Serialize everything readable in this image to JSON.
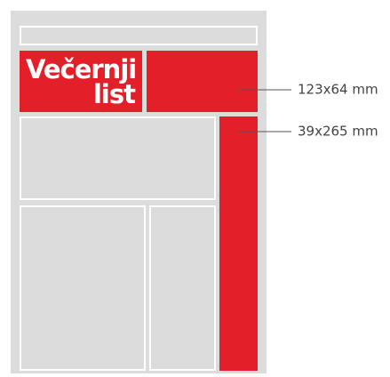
{
  "logo": {
    "line1": "Večernji",
    "line2": "list"
  },
  "ads": [
    {
      "size": "123x64 mm"
    },
    {
      "size": "39x265 mm"
    }
  ]
}
